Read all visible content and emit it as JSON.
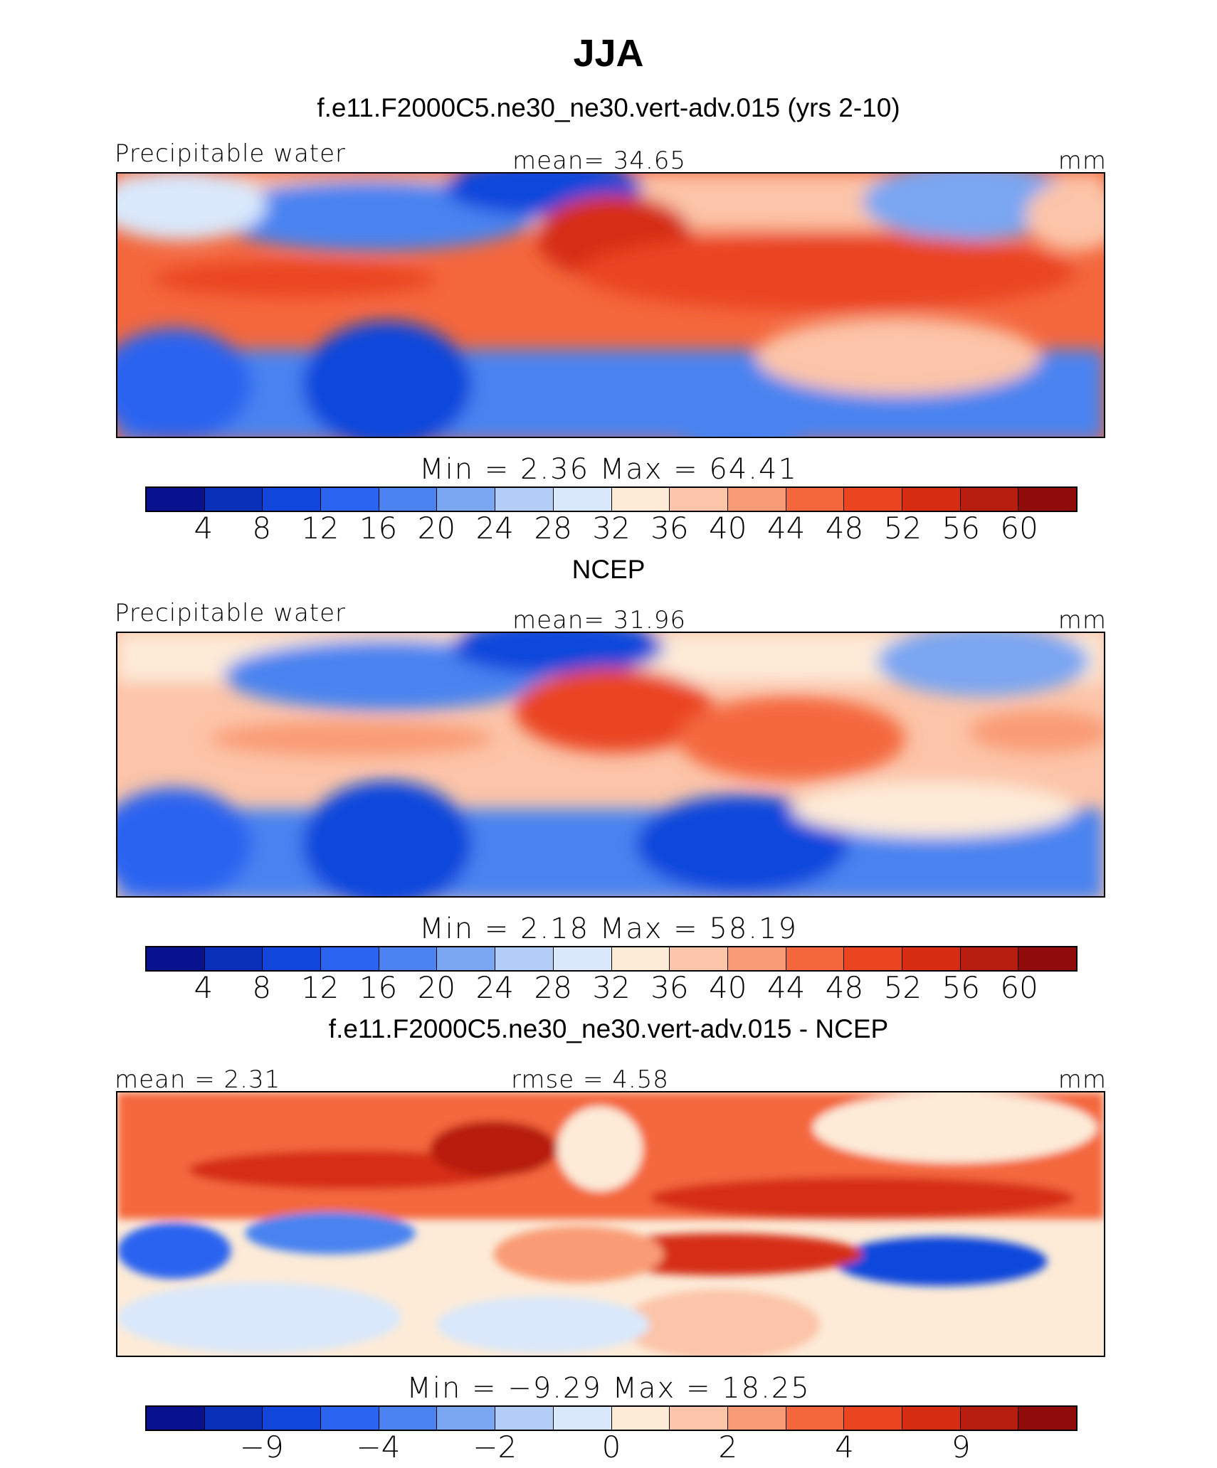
{
  "figure": {
    "title": "JJA"
  },
  "colors": [
    "#08128f",
    "#0a2fb8",
    "#1046dc",
    "#2a64f0",
    "#4a83f0",
    "#7aa6f2",
    "#b2cdf6",
    "#d9e8fb",
    "#fdebd8",
    "#fcc4a8",
    "#f99b74",
    "#f4673d",
    "#ea4420",
    "#d62d12",
    "#b71e10",
    "#8f0c0a"
  ],
  "panels": [
    {
      "title": "f.e11.F2000C5.ne30_ne30.vert-adv.015 (yrs 2-10)",
      "left_label": "Precipitable  water",
      "center_label": "mean=   34.65",
      "right_label": "mm",
      "minmax": "Min  =      2.36  Max  =     64.41",
      "colorbar_ticks": [
        "4",
        "8",
        "12",
        "16",
        "20",
        "24",
        "28",
        "32",
        "36",
        "40",
        "44",
        "48",
        "52",
        "56",
        "60"
      ],
      "stats": {
        "mean": 34.65,
        "min": 2.36,
        "max": 64.41
      }
    },
    {
      "title": "NCEP",
      "left_label": "Precipitable  water",
      "center_label": "mean=   31.96",
      "right_label": "mm",
      "minmax": "Min  =      2.18  Max  =     58.19",
      "colorbar_ticks": [
        "4",
        "8",
        "12",
        "16",
        "20",
        "24",
        "28",
        "32",
        "36",
        "40",
        "44",
        "48",
        "52",
        "56",
        "60"
      ],
      "stats": {
        "mean": 31.96,
        "min": 2.18,
        "max": 58.19
      }
    },
    {
      "title": "f.e11.F2000C5.ne30_ne30.vert-adv.015 - NCEP",
      "left_label": "mean  =     2.31",
      "center_label": "rmse  =      4.58",
      "right_label": "mm",
      "minmax": "Min  =    −9.29  Max  =     18.25",
      "colorbar_ticks": [
        "−9",
        "−4",
        "−2",
        "0",
        "2",
        "4",
        "9"
      ],
      "stats": {
        "mean": 2.31,
        "rmse": 4.58,
        "min": -9.29,
        "max": 18.25
      }
    }
  ]
}
